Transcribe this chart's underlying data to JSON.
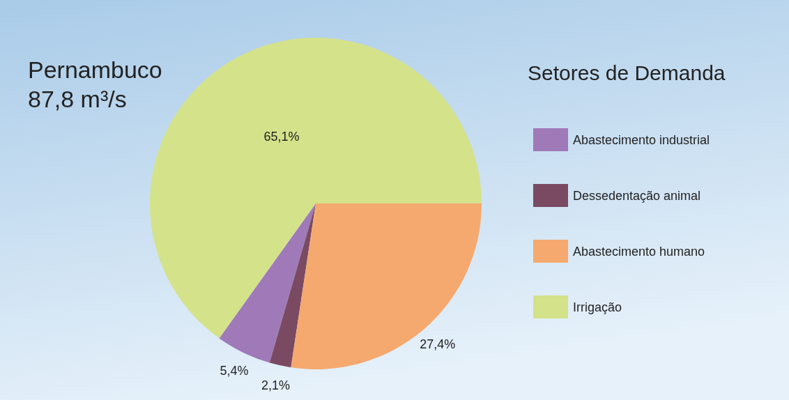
{
  "chart_data": {
    "type": "pie",
    "title": "Pernambuco",
    "subtitle": "87,8 m³/s",
    "legend_title": "Setores de Demanda",
    "categories": [
      "Abastecimento industrial",
      "Dessedentação animal",
      "Abastecimento humano",
      "Irrigação"
    ],
    "values": [
      5.4,
      2.1,
      27.4,
      65.1
    ],
    "colors": [
      "#a07ab8",
      "#7a4a62",
      "#f5a96e",
      "#d4e28a"
    ],
    "value_labels": [
      "5,4%",
      "2,1%",
      "27,4%",
      "65,1%"
    ],
    "legend": "right"
  }
}
